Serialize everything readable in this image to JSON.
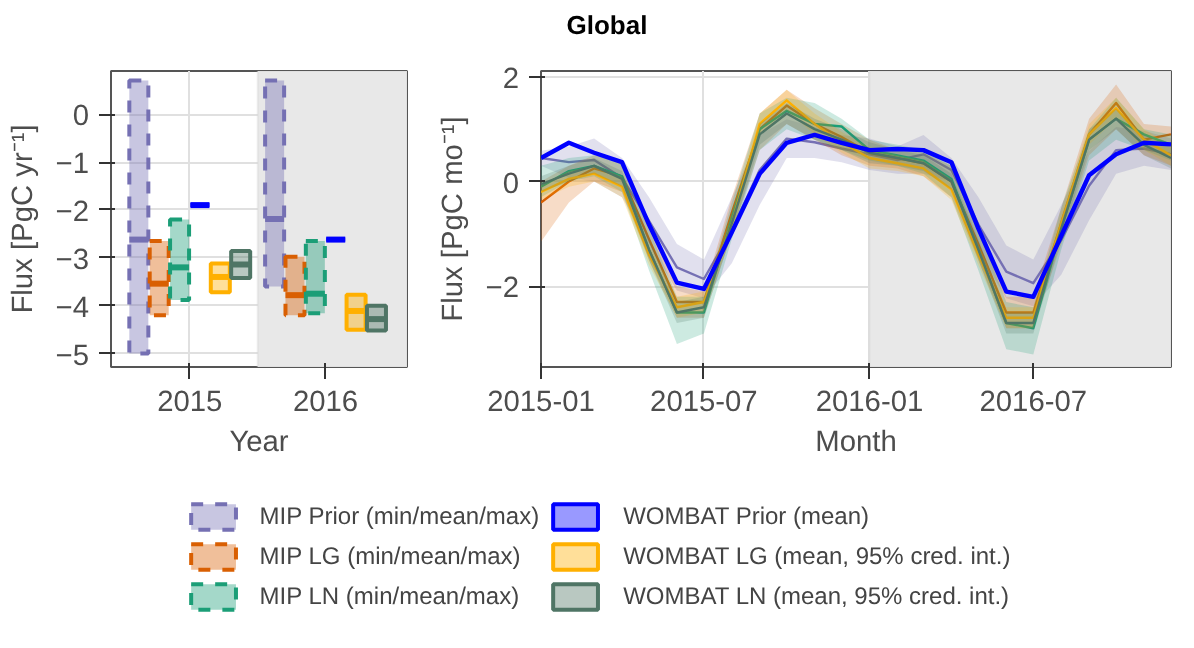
{
  "chart_data": [
    {
      "type": "box",
      "xlabel": "Year",
      "ylabel": "Flux [PgC yr⁻¹]",
      "x": [
        2015,
        2016
      ],
      "xlim": [
        2014.42,
        2016.6
      ],
      "xticks": [
        2015,
        2016
      ],
      "ylim": [
        -5.28,
        0.9
      ],
      "yticks": [
        -5,
        -4,
        -3,
        -2,
        -1,
        0
      ],
      "grid": true,
      "legend": "bottom",
      "bands": [
        {
          "axis": "x",
          "from": 2015.5,
          "to": 2016.6,
          "color": "#e8e8e8"
        }
      ],
      "series": [
        {
          "name": "MIP Prior (min/mean/max)",
          "color": "#7570b3",
          "line_style": "dashed",
          "boxes": [
            {
              "low": -5.0,
              "q1": -5.0,
              "median": -2.62,
              "q3": 0.7,
              "high": 0.7
            },
            {
              "low": -3.6,
              "q1": -3.6,
              "median": -2.19,
              "q3": 0.7,
              "high": 0.7
            }
          ]
        },
        {
          "name": "MIP LG (min/mean/max)",
          "color": "#d95f02",
          "line_style": "dashed",
          "boxes": [
            {
              "low": -4.2,
              "q1": -4.2,
              "median": -3.54,
              "q3": -2.65,
              "high": -2.65
            },
            {
              "low": -4.2,
              "q1": -4.2,
              "median": -3.78,
              "q3": -2.98,
              "high": -2.98
            }
          ]
        },
        {
          "name": "MIP LN (min/mean/max)",
          "color": "#1b9e77",
          "line_style": "dashed",
          "boxes": [
            {
              "low": -3.88,
              "q1": -3.88,
              "median": -3.2,
              "q3": -2.2,
              "high": -2.2
            },
            {
              "low": -4.16,
              "q1": -4.16,
              "median": -3.75,
              "q3": -2.65,
              "high": -2.65
            }
          ]
        },
        {
          "name": "WOMBAT Prior (mean)",
          "color": "#0000ff",
          "line_style": "solid",
          "boxes": [
            {
              "low": -1.9,
              "q1": -1.9,
              "median": -1.9,
              "q3": -1.9,
              "high": -1.9
            },
            {
              "low": -2.62,
              "q1": -2.62,
              "median": -2.62,
              "q3": -2.62,
              "high": -2.62
            }
          ]
        },
        {
          "name": "WOMBAT LG (mean, 95% cred. int.)",
          "color": "#ffb000",
          "line_style": "solid",
          "boxes": [
            {
              "low": -3.72,
              "q1": -3.72,
              "median": -3.4,
              "q3": -3.12,
              "high": -3.12
            },
            {
              "low": -4.5,
              "q1": -4.5,
              "median": -4.11,
              "q3": -3.77,
              "high": -3.77
            }
          ]
        },
        {
          "name": "WOMBAT LN (mean, 95% cred. int.)",
          "color": "#4f7565",
          "line_style": "solid",
          "boxes": [
            {
              "low": -3.42,
              "q1": -3.42,
              "median": -3.14,
              "q3": -2.86,
              "high": -2.86
            },
            {
              "low": -4.52,
              "q1": -4.52,
              "median": -4.28,
              "q3": -4.0,
              "high": -4.0
            }
          ]
        }
      ]
    },
    {
      "type": "line",
      "title": "Global",
      "xlabel": "Month",
      "ylabel": "Flux [PgC mo⁻¹]",
      "x": [
        "2015-01",
        "2015-02",
        "2015-03",
        "2015-04",
        "2015-05",
        "2015-06",
        "2015-07",
        "2015-08",
        "2015-09",
        "2015-10",
        "2015-11",
        "2015-12",
        "2016-01",
        "2016-02",
        "2016-03",
        "2016-04",
        "2016-05",
        "2016-06",
        "2016-07",
        "2016-08",
        "2016-09",
        "2016-10",
        "2016-11",
        "2016-12"
      ],
      "xlim": [
        "2015-01",
        "2016-12"
      ],
      "xticks": [
        "2015-01",
        "2015-07",
        "2016-01",
        "2016-07"
      ],
      "ylim": [
        -3.54,
        2.11
      ],
      "yticks": [
        -2,
        0,
        2
      ],
      "grid": true,
      "legend": false,
      "bands": [
        {
          "axis": "x",
          "from": "2016-01",
          "to": "2016-12",
          "color": "#e8e8e8"
        }
      ],
      "series": [
        {
          "color": "#7570b3",
          "values": [
            0.45,
            0.37,
            0.41,
            0.07,
            -0.75,
            -1.64,
            -1.86,
            -0.93,
            0.22,
            0.82,
            0.75,
            0.63,
            0.52,
            0.41,
            0.52,
            0.22,
            -0.82,
            -1.72,
            -1.94,
            -1.12,
            -0.08,
            0.6,
            0.63,
            0.52
          ],
          "lower": [
            0.3,
            0.07,
            0.0,
            -0.3,
            -1.19,
            -2.08,
            -2.23,
            -1.56,
            -0.45,
            0.45,
            0.45,
            0.37,
            0.22,
            0.15,
            0.15,
            0.0,
            -1.34,
            -2.23,
            -2.38,
            -1.78,
            -0.74,
            0.15,
            0.3,
            0.22
          ],
          "upper": [
            0.59,
            0.67,
            0.82,
            0.45,
            -0.3,
            -1.19,
            -1.49,
            -0.3,
            0.89,
            1.19,
            1.04,
            0.89,
            0.82,
            0.67,
            0.89,
            0.45,
            -0.3,
            -1.22,
            -1.49,
            -0.45,
            0.59,
            1.04,
            0.97,
            0.82
          ]
        },
        {
          "color": "#d95f02",
          "values": [
            -0.4,
            0.0,
            0.25,
            0.1,
            -1.1,
            -2.3,
            -2.3,
            -0.6,
            1.0,
            1.45,
            1.1,
            0.85,
            0.55,
            0.45,
            0.35,
            0.0,
            -1.2,
            -2.5,
            -2.5,
            -0.8,
            0.9,
            1.5,
            0.8,
            0.9
          ],
          "lower": [
            -1.15,
            -0.4,
            0.0,
            -0.2,
            -1.5,
            -2.6,
            -2.6,
            -1.0,
            0.6,
            1.1,
            0.8,
            0.5,
            0.3,
            0.25,
            0.1,
            -0.3,
            -1.5,
            -2.8,
            -2.8,
            -1.2,
            0.5,
            1.0,
            0.5,
            0.3
          ],
          "upper": [
            0.0,
            0.3,
            0.5,
            0.4,
            -0.8,
            -2.0,
            -2.1,
            -0.3,
            1.3,
            1.75,
            1.4,
            1.1,
            0.8,
            0.6,
            0.55,
            0.3,
            -0.9,
            -2.2,
            -2.2,
            -0.5,
            1.2,
            1.85,
            1.1,
            1.05
          ]
        },
        {
          "color": "#1b9e77",
          "values": [
            -0.1,
            0.2,
            0.3,
            0.1,
            -1.3,
            -2.5,
            -2.5,
            -0.7,
            1.0,
            1.35,
            1.1,
            1.05,
            0.6,
            0.5,
            0.4,
            0.05,
            -1.3,
            -2.7,
            -2.8,
            -0.9,
            0.8,
            1.2,
            0.9,
            0.7
          ],
          "lower": [
            -0.3,
            0.0,
            0.1,
            -0.2,
            -1.7,
            -3.1,
            -2.9,
            -1.1,
            0.6,
            1.0,
            0.8,
            0.6,
            0.4,
            0.3,
            0.15,
            -0.3,
            -1.7,
            -3.2,
            -3.3,
            -1.3,
            0.4,
            0.8,
            0.6,
            0.4
          ],
          "upper": [
            0.3,
            0.45,
            0.5,
            0.4,
            -0.9,
            -2.2,
            -2.2,
            -0.4,
            1.3,
            1.6,
            1.5,
            1.2,
            0.8,
            0.7,
            0.6,
            0.3,
            -0.9,
            -2.3,
            -2.4,
            -0.5,
            1.0,
            1.6,
            1.0,
            0.9
          ]
        },
        {
          "color": "#ffb000",
          "values": [
            -0.2,
            0.05,
            0.15,
            -0.1,
            -1.4,
            -2.4,
            -2.3,
            -0.8,
            1.1,
            1.55,
            1.1,
            0.75,
            0.45,
            0.35,
            0.25,
            -0.15,
            -1.4,
            -2.6,
            -2.6,
            -0.8,
            0.9,
            1.4,
            0.8,
            0.5
          ],
          "lower": [
            -0.35,
            -0.1,
            0.0,
            -0.3,
            -1.6,
            -2.6,
            -2.5,
            -1.0,
            0.9,
            1.35,
            0.9,
            0.55,
            0.25,
            0.2,
            0.1,
            -0.35,
            -1.6,
            -2.8,
            -2.8,
            -1.0,
            0.7,
            1.2,
            0.6,
            0.3
          ],
          "upper": [
            -0.05,
            0.2,
            0.3,
            0.1,
            -1.2,
            -2.2,
            -2.1,
            -0.6,
            1.3,
            1.75,
            1.3,
            0.95,
            0.65,
            0.5,
            0.4,
            0.05,
            -1.2,
            -2.4,
            -2.4,
            -0.6,
            1.1,
            1.6,
            1.0,
            0.7
          ]
        },
        {
          "color": "#4f7565",
          "values": [
            -0.05,
            0.15,
            0.3,
            0.05,
            -1.3,
            -2.5,
            -2.4,
            -0.8,
            0.9,
            1.3,
            1.0,
            0.8,
            0.55,
            0.45,
            0.35,
            0.0,
            -1.3,
            -2.7,
            -2.7,
            -0.9,
            0.8,
            1.2,
            0.7,
            0.45
          ],
          "lower": [
            -0.2,
            0.0,
            0.15,
            -0.1,
            -1.5,
            -2.7,
            -2.6,
            -1.0,
            0.7,
            1.1,
            0.8,
            0.6,
            0.35,
            0.3,
            0.2,
            -0.15,
            -1.5,
            -2.9,
            -2.9,
            -1.1,
            0.6,
            1.0,
            0.5,
            0.25
          ],
          "upper": [
            0.1,
            0.3,
            0.45,
            0.2,
            -1.1,
            -2.3,
            -2.2,
            -0.6,
            1.1,
            1.5,
            1.2,
            1.0,
            0.75,
            0.6,
            0.5,
            0.15,
            -1.1,
            -2.5,
            -2.5,
            -0.7,
            1.0,
            1.4,
            0.9,
            0.65
          ]
        },
        {
          "color": "#0000ff",
          "values": [
            0.45,
            0.74,
            0.55,
            0.37,
            -0.82,
            -1.93,
            -2.05,
            -0.97,
            0.15,
            0.74,
            0.89,
            0.74,
            0.6,
            0.62,
            0.6,
            0.37,
            -0.9,
            -2.1,
            -2.2,
            -1.04,
            0.12,
            0.52,
            0.74,
            0.71
          ]
        }
      ]
    }
  ]
}
